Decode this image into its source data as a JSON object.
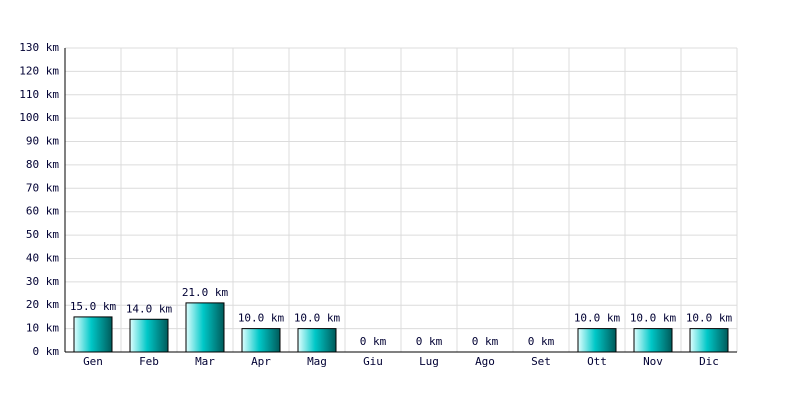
{
  "chart_data": {
    "type": "bar",
    "categories": [
      "Gen",
      "Feb",
      "Mar",
      "Apr",
      "Mag",
      "Giu",
      "Lug",
      "Ago",
      "Set",
      "Ott",
      "Nov",
      "Dic"
    ],
    "values": [
      15,
      14,
      21,
      10,
      10,
      0,
      0,
      0,
      0,
      10,
      10,
      10
    ],
    "value_labels": [
      "15.0 km",
      "14.0 km",
      "21.0 km",
      "10.0 km",
      "10.0 km",
      "0 km",
      "0 km",
      "0 km",
      "0 km",
      "10.0 km",
      "10.0 km",
      "10.0 km"
    ],
    "color": "#00c8c8",
    "ylim": [
      0,
      130
    ],
    "yticks": [
      {
        "value": 0,
        "label": "0 km"
      },
      {
        "value": 10,
        "label": "10 km"
      },
      {
        "value": 20,
        "label": "20 km"
      },
      {
        "value": 30,
        "label": "30 km"
      },
      {
        "value": 40,
        "label": "40 km"
      },
      {
        "value": 50,
        "label": "50 km"
      },
      {
        "value": 60,
        "label": "60 km"
      },
      {
        "value": 70,
        "label": "70 km"
      },
      {
        "value": 80,
        "label": "80 km"
      },
      {
        "value": 90,
        "label": "90 km"
      },
      {
        "value": 100,
        "label": "100 km"
      },
      {
        "value": 110,
        "label": "110 km"
      },
      {
        "value": 120,
        "label": "120 km"
      },
      {
        "value": 130,
        "label": "130 km"
      }
    ],
    "grid": true
  }
}
